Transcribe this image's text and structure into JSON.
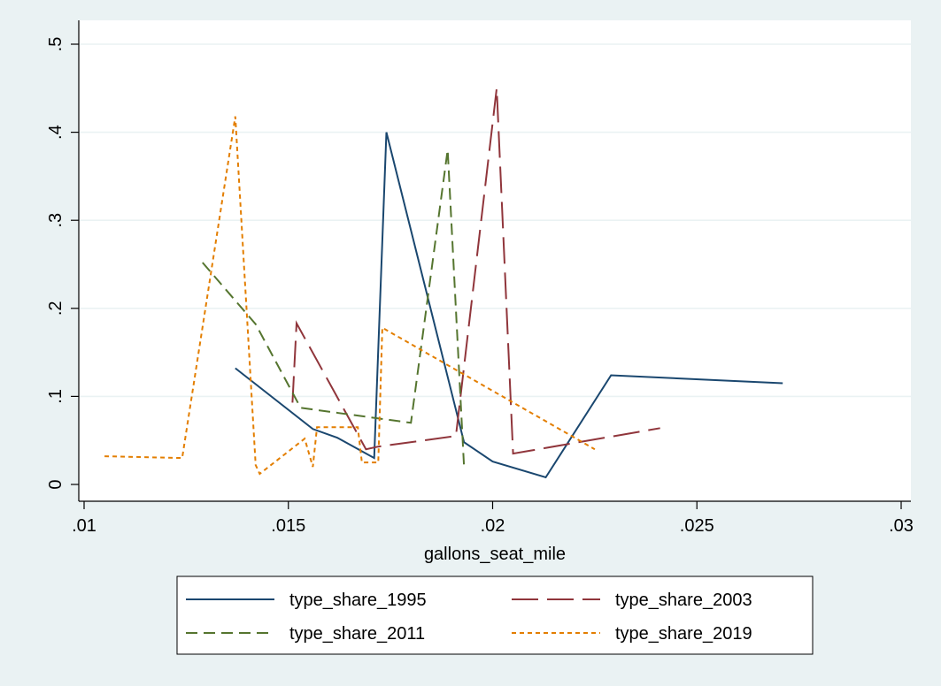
{
  "chart_data": {
    "type": "line",
    "title": "",
    "xlabel": "gallons_seat_mile",
    "ylabel": "",
    "xlim": [
      0.01,
      0.03
    ],
    "ylim": [
      0,
      0.5
    ],
    "xticks": [
      0.01,
      0.015,
      0.02,
      0.025,
      0.03
    ],
    "xtick_labels": [
      ".01",
      ".015",
      ".02",
      ".025",
      ".03"
    ],
    "yticks": [
      0,
      0.1,
      0.2,
      0.3,
      0.4,
      0.5
    ],
    "ytick_labels": [
      "0",
      ".1",
      ".2",
      ".3",
      ".4",
      ".5"
    ],
    "grid": "horizontal",
    "legend_position": "bottom",
    "series": [
      {
        "name": "type_share_1995",
        "color": "#1a476f",
        "style": "solid",
        "points": [
          [
            0.0137,
            0.132
          ],
          [
            0.0156,
            0.063
          ],
          [
            0.0162,
            0.053
          ],
          [
            0.0171,
            0.03
          ],
          [
            0.0174,
            0.4
          ],
          [
            0.0193,
            0.048
          ],
          [
            0.02,
            0.026
          ],
          [
            0.0213,
            0.008
          ],
          [
            0.0229,
            0.124
          ],
          [
            0.0271,
            0.115
          ]
        ]
      },
      {
        "name": "type_share_2003",
        "color": "#90353b",
        "style": "longdash",
        "points": [
          [
            0.0151,
            0.093
          ],
          [
            0.0152,
            0.183
          ],
          [
            0.0169,
            0.04
          ],
          [
            0.0172,
            0.043
          ],
          [
            0.0191,
            0.055
          ],
          [
            0.0201,
            0.45
          ],
          [
            0.0205,
            0.035
          ],
          [
            0.0241,
            0.064
          ]
        ]
      },
      {
        "name": "type_share_2011",
        "color": "#55752f",
        "style": "dash",
        "points": [
          [
            0.0129,
            0.252
          ],
          [
            0.0142,
            0.182
          ],
          [
            0.0153,
            0.087
          ],
          [
            0.018,
            0.07
          ],
          [
            0.0189,
            0.38
          ],
          [
            0.0193,
            0.02
          ]
        ]
      },
      {
        "name": "type_share_2019",
        "color": "#e37e00",
        "style": "shortdash",
        "points": [
          [
            0.0105,
            0.032
          ],
          [
            0.0124,
            0.03
          ],
          [
            0.0137,
            0.418
          ],
          [
            0.0142,
            0.022
          ],
          [
            0.0143,
            0.012
          ],
          [
            0.0154,
            0.052
          ],
          [
            0.0156,
            0.02
          ],
          [
            0.0157,
            0.065
          ],
          [
            0.0167,
            0.065
          ],
          [
            0.0168,
            0.025
          ],
          [
            0.0172,
            0.025
          ],
          [
            0.0173,
            0.178
          ],
          [
            0.0225,
            0.04
          ]
        ]
      }
    ]
  }
}
